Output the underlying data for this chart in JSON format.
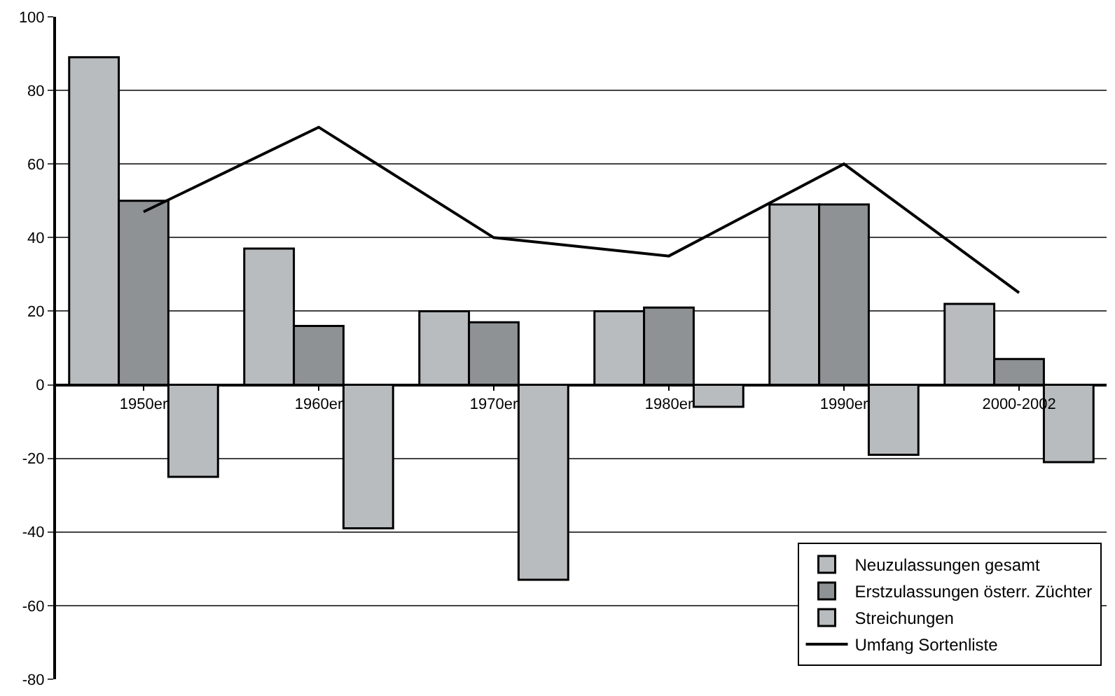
{
  "chart_data": {
    "type": "bar",
    "categories": [
      "1950er",
      "1960er",
      "1970er",
      "1980er",
      "1990er",
      "2000-2002"
    ],
    "series": [
      {
        "name": "Neuzulassungen gesamt",
        "color": "#b8bcbe",
        "values": [
          89,
          37,
          20,
          20,
          49,
          22
        ]
      },
      {
        "name": "Erstzulassungen österr. Züchter",
        "color": "#8e9294",
        "values": [
          50,
          16,
          17,
          21,
          49,
          7
        ]
      },
      {
        "name": "Streichungen",
        "color": "#b8bcbe",
        "values": [
          -25,
          -39,
          -53,
          -6,
          -19,
          -21
        ]
      },
      {
        "name": "Umfang Sortenliste",
        "color": "#000000",
        "type": "line",
        "values": [
          47,
          70,
          40,
          35,
          60,
          25
        ]
      }
    ],
    "ylim": [
      -80,
      100
    ],
    "yticks": [
      -80,
      -60,
      -40,
      -20,
      0,
      20,
      40,
      60,
      80,
      100
    ],
    "grid": "y",
    "legend": "bottom right",
    "marker": "none",
    "line_style": "solid"
  }
}
